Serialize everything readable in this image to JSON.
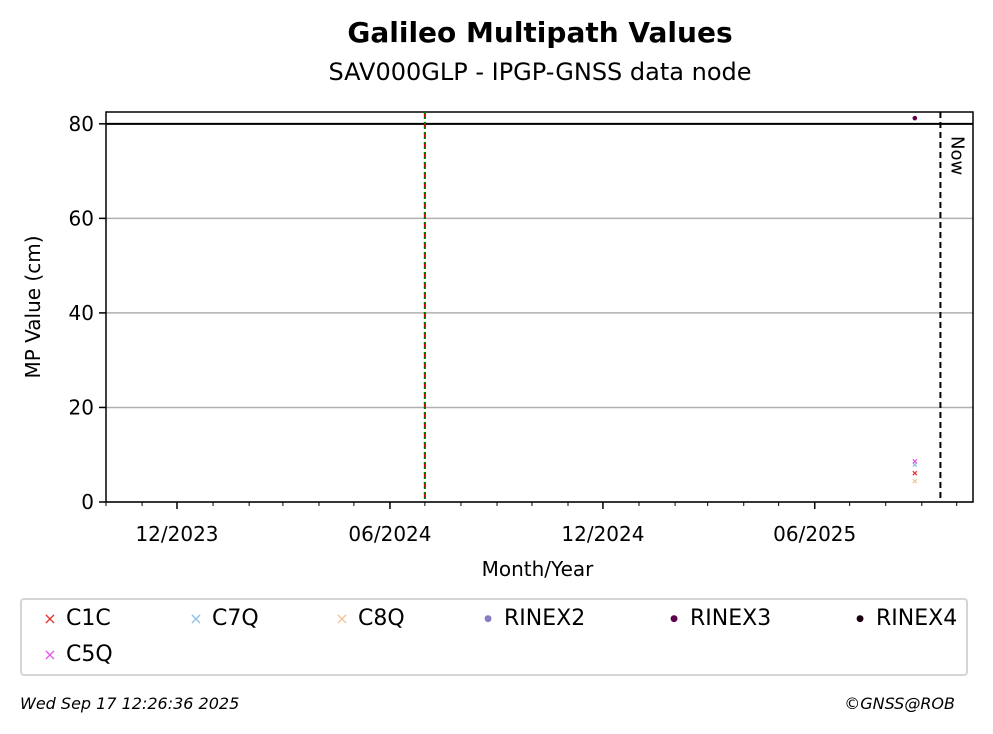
{
  "chart_data": {
    "type": "scatter",
    "title": "Galileo Multipath Values",
    "subtitle": "SAV000GLP - IPGP-GNSS data node",
    "xlabel": "Month/Year",
    "ylabel": "MP Value (cm)",
    "x_ticks": [
      "12/2023",
      "06/2024",
      "12/2024",
      "06/2025"
    ],
    "y_ticks": [
      0,
      20,
      40,
      60,
      80
    ],
    "ylim": [
      0,
      82.5
    ],
    "xlim": [
      "2023-10-01",
      "2025-10-15"
    ],
    "grid": "horizontal",
    "reference_lines": [
      {
        "type": "hline",
        "y": 80,
        "style": "solid",
        "color": "#000000"
      },
      {
        "type": "vline",
        "x": "2024-07-01",
        "style": "dashed",
        "color": "#cc0000"
      },
      {
        "type": "vline",
        "x": "2024-07-01",
        "style": "dotted",
        "color": "#007a00"
      },
      {
        "type": "vline",
        "x": "2025-09-17",
        "style": "dashed",
        "color": "#000000",
        "label": "Now"
      }
    ],
    "series": [
      {
        "name": "C1C",
        "marker": "x",
        "color": "#e8312a",
        "points": [
          {
            "x": "2025-08-26",
            "y": 6.1
          }
        ]
      },
      {
        "name": "C7Q",
        "marker": "x",
        "color": "#8fbfe6",
        "points": [
          {
            "x": "2025-08-26",
            "y": 7.9
          }
        ]
      },
      {
        "name": "C8Q",
        "marker": "x",
        "color": "#f2c49c",
        "points": [
          {
            "x": "2025-08-26",
            "y": 4.4
          }
        ]
      },
      {
        "name": "RINEX2",
        "marker": "o",
        "color": "#8a7cc0",
        "points": []
      },
      {
        "name": "RINEX3",
        "marker": "o",
        "color": "#5e004f",
        "points": [
          {
            "x": "2025-08-26",
            "y": 81.2
          }
        ]
      },
      {
        "name": "RINEX4",
        "marker": "o",
        "color": "#1a0010",
        "points": []
      },
      {
        "name": "C5Q",
        "marker": "x",
        "color": "#e854e8",
        "points": [
          {
            "x": "2025-08-26",
            "y": 8.6
          }
        ]
      }
    ]
  },
  "footer": {
    "timestamp": "Wed Sep 17 12:26:36 2025",
    "credit": "©GNSS@ROB"
  }
}
